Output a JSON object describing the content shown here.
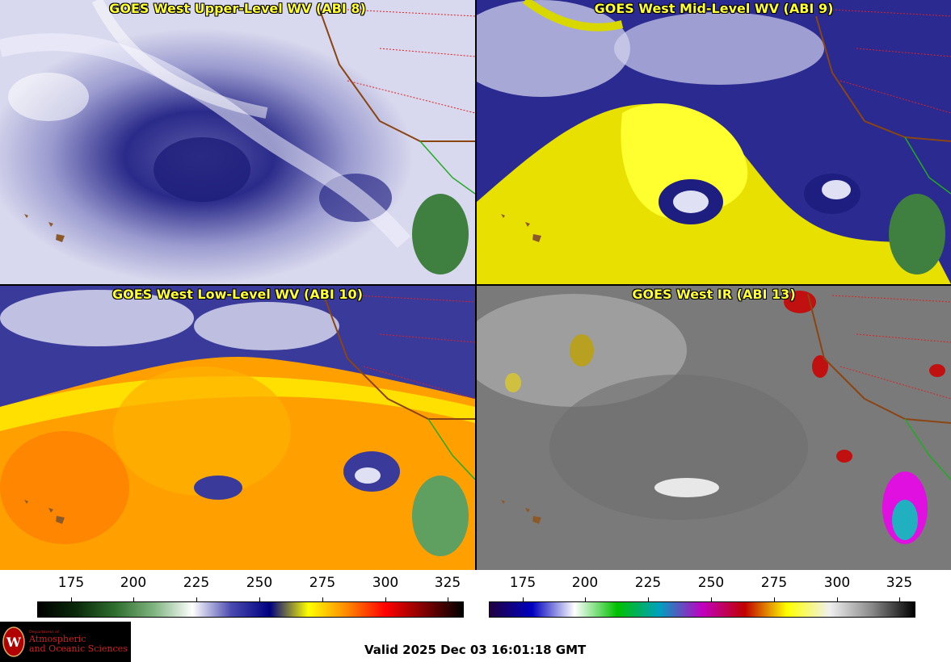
{
  "panels": [
    {
      "title": "GOES West Upper-Level WV (ABI 8)",
      "palette": "wv-upper"
    },
    {
      "title": "GOES West Mid-Level WV (ABI 9)",
      "palette": "wv-mid"
    },
    {
      "title": "GOES West Low-Level WV (ABI 10)",
      "palette": "wv-low"
    },
    {
      "title": "GOES West IR (ABI 13)",
      "palette": "ir"
    }
  ],
  "colorbars": [
    {
      "ticks": [
        "175",
        "200",
        "225",
        "250",
        "275",
        "300",
        "325"
      ],
      "colors": [
        "#000000",
        "#0a2a0a",
        "#2f6e2f",
        "#7fb37f",
        "#ffffff",
        "#4a4ab0",
        "#000080",
        "#ffff00",
        "#ff8800",
        "#ff0000",
        "#800000",
        "#000000"
      ]
    },
    {
      "ticks": [
        "175",
        "200",
        "225",
        "250",
        "275",
        "300",
        "325"
      ],
      "colors": [
        "#200040",
        "#0000c0",
        "#ffffff",
        "#00c000",
        "#00a0c0",
        "#c000c0",
        "#c00000",
        "#ffff00",
        "#f0f0f0",
        "#888888",
        "#000000"
      ]
    }
  ],
  "logo": {
    "small": "Department of",
    "line1": "Atmospheric",
    "line2": "and Oceanic Sciences"
  },
  "valid_time": "Valid 2025 Dec 03 16:01:18 GMT"
}
